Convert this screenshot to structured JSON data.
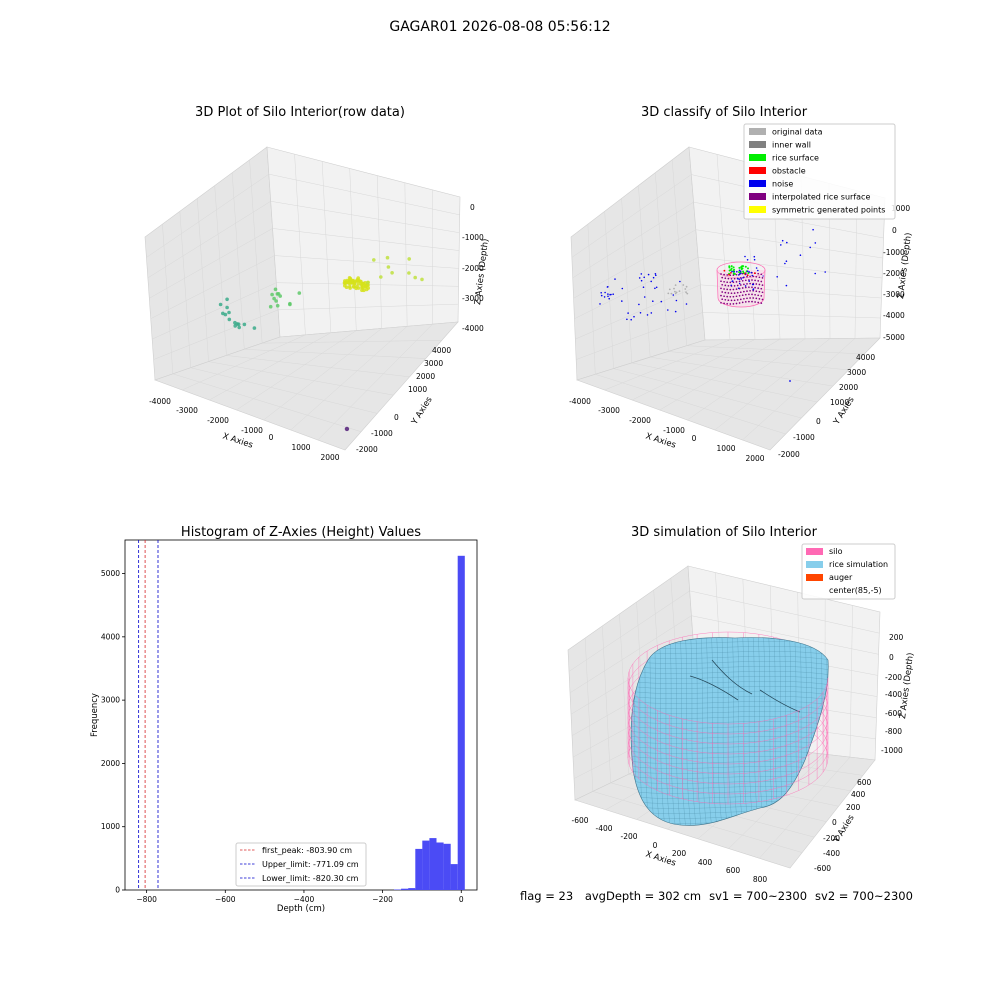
{
  "figure_title": "GAGAR01 2026-08-08 05:56:12",
  "colors": {
    "pane": "#f2f2f2",
    "pane_side": "#e6e6e6",
    "grid": "#d8d8d8",
    "hist_bar": "#4b4bf5",
    "silo": "#ff69b4",
    "rice": "#87ceeb",
    "auger": "#ff4500"
  },
  "chart_data": [
    {
      "type": "scatter",
      "title": "3D Plot of Silo Interior(row data)",
      "xlabel": "X Axies",
      "ylabel": "Y Axies",
      "zlabel": "Z Axies (Depth)",
      "xticks": [
        "-4000",
        "-3000",
        "-2000",
        "-1000",
        "0",
        "1000",
        "2000"
      ],
      "yticks": [
        "-2000",
        "-1000",
        "0",
        "1000",
        "2000",
        "3000",
        "4000"
      ],
      "zticks": [
        "0",
        "-1000",
        "-2000",
        "-3000",
        "-4000"
      ],
      "xlim": [
        -4000,
        2000
      ],
      "ylim": [
        -2000,
        4000
      ],
      "zlim": [
        -4000,
        0
      ],
      "clusters": [
        {
          "x": -3300,
          "y": 900,
          "z": -2700,
          "color": "#3aaa8a",
          "count": 14
        },
        {
          "x": -2500,
          "y": 1800,
          "z": -2200,
          "color": "#5fc96a",
          "count": 12
        },
        {
          "x": -500,
          "y": 2800,
          "z": -1700,
          "color": "#d6e21b",
          "count": 60
        },
        {
          "x": 600,
          "y": 3200,
          "z": -1300,
          "color": "#bfe040",
          "count": 10
        }
      ],
      "outlier": {
        "x": 1500,
        "y": -1000,
        "z": -4000,
        "color": "#6a3d8a"
      }
    },
    {
      "type": "scatter",
      "title": "3D classify of Silo Interior",
      "xlabel": "X Axies",
      "ylabel": "Y Axies",
      "zlabel": "Z Axies (Depth)",
      "xticks": [
        "-4000",
        "-3000",
        "-2000",
        "-1000",
        "0",
        "1000",
        "2000"
      ],
      "yticks": [
        "-2000",
        "-1000",
        "0",
        "1000",
        "2000",
        "3000",
        "4000"
      ],
      "zticks": [
        "1000",
        "0",
        "-1000",
        "-2000",
        "-3000",
        "-4000",
        "-5000"
      ],
      "xlim": [
        -4000,
        2000
      ],
      "ylim": [
        -2000,
        4000
      ],
      "zlim": [
        -5000,
        1000
      ],
      "legend_position": "top-right",
      "legend": [
        {
          "label": "original data",
          "color": "#b0b0b0"
        },
        {
          "label": "inner wall",
          "color": "#808080"
        },
        {
          "label": "rice surface",
          "color": "#00ee00"
        },
        {
          "label": "obstacle",
          "color": "#ff0000"
        },
        {
          "label": "noise",
          "color": "#0000ee"
        },
        {
          "label": "interpolated rice surface",
          "color": "#800080"
        },
        {
          "label": "symmetric generated points",
          "color": "#ffff00"
        }
      ]
    },
    {
      "type": "bar",
      "title": "Histogram of Z-Axies (Height) Values",
      "xlabel": "Depth (cm)",
      "ylabel": "Frequency",
      "xlim": [
        -855,
        40
      ],
      "ylim": [
        0,
        5530
      ],
      "xticks": [
        -800,
        -600,
        -400,
        -200,
        0
      ],
      "yticks": [
        0,
        1000,
        2000,
        3000,
        4000,
        5000
      ],
      "bin_width": 18,
      "bins": [
        {
          "x": -162,
          "value": 8
        },
        {
          "x": -144,
          "value": 20
        },
        {
          "x": -126,
          "value": 30
        },
        {
          "x": -108,
          "value": 650
        },
        {
          "x": -90,
          "value": 780
        },
        {
          "x": -72,
          "value": 820
        },
        {
          "x": -54,
          "value": 750
        },
        {
          "x": -36,
          "value": 730
        },
        {
          "x": -18,
          "value": 410
        },
        {
          "x": 0,
          "value": 5280
        }
      ],
      "vlines": [
        {
          "x": -803.9,
          "color": "#d62728",
          "label": "first_peak: -803.90 cm"
        },
        {
          "x": -771.09,
          "color": "#0000cc",
          "label": "Upper_limit: -771.09 cm"
        },
        {
          "x": -820.3,
          "color": "#0000cc",
          "label": "Lower_limit: -820.30 cm"
        }
      ],
      "legend_position": "lower-center"
    },
    {
      "type": "surface",
      "title": "3D simulation of Silo Interior",
      "xlabel": "X Axies",
      "ylabel": "Y Axies",
      "zlabel": "Z Axies (Depth)",
      "xticks": [
        "-600",
        "-400",
        "-200",
        "0",
        "200",
        "400",
        "600",
        "800"
      ],
      "yticks": [
        "-600",
        "-400",
        "-200",
        "0",
        "200",
        "400",
        "600"
      ],
      "zticks": [
        "200",
        "0",
        "-200",
        "-400",
        "-600",
        "-800",
        "-1000"
      ],
      "legend_position": "top-right",
      "legend": [
        {
          "label": "silo",
          "color": "#ff69b4"
        },
        {
          "label": "rice simulation",
          "color": "#87ceeb"
        },
        {
          "label": "auger",
          "color": "#ff4500"
        },
        {
          "label": "center(85,-5)",
          "color": ""
        }
      ]
    }
  ],
  "footer": {
    "flag": "flag = 23",
    "avg_depth": "avgDepth = 302 cm",
    "sv1": "sv1 = 700~2300",
    "sv2": "sv2 = 700~2300"
  }
}
